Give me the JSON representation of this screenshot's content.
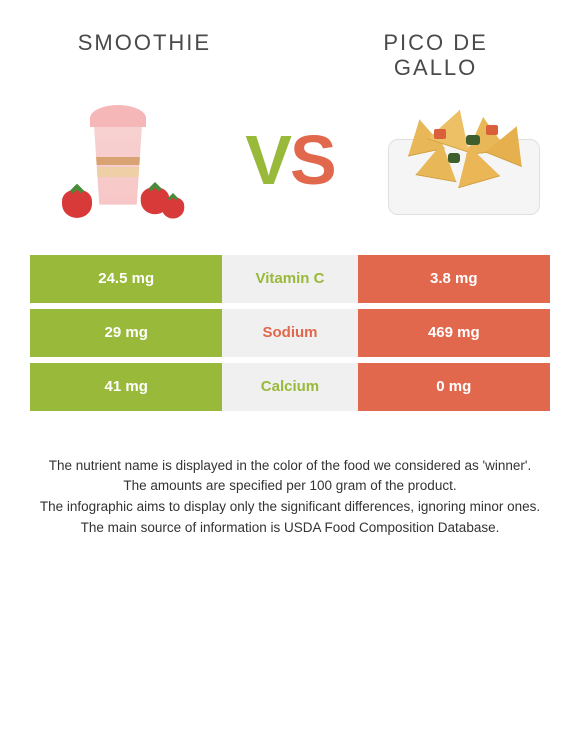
{
  "colors": {
    "left": "#99b93b",
    "right": "#e1674d",
    "mid_bg": "#f0f0f0",
    "title_text": "#4a4a4a",
    "footer_text": "#333333"
  },
  "titles": {
    "left": "SMOOTHIE",
    "right_line1": "PICO DE",
    "right_line2": "GALLO"
  },
  "vs": {
    "v": "V",
    "s": "S"
  },
  "rows": [
    {
      "left": "24.5 mg",
      "label": "Vitamin C",
      "right": "3.8 mg",
      "winner": "left"
    },
    {
      "left": "29 mg",
      "label": "Sodium",
      "right": "469 mg",
      "winner": "right"
    },
    {
      "left": "41 mg",
      "label": "Calcium",
      "right": "0 mg",
      "winner": "left"
    }
  ],
  "footer": {
    "p1": "The nutrient name is displayed in the color of the food we considered as 'winner'.",
    "p2": "The amounts are specified per 100 gram of the product.",
    "p3": "The infographic aims to display only the significant differences, ignoring minor ones.",
    "p4": "The main source of information is USDA Food Composition Database."
  }
}
